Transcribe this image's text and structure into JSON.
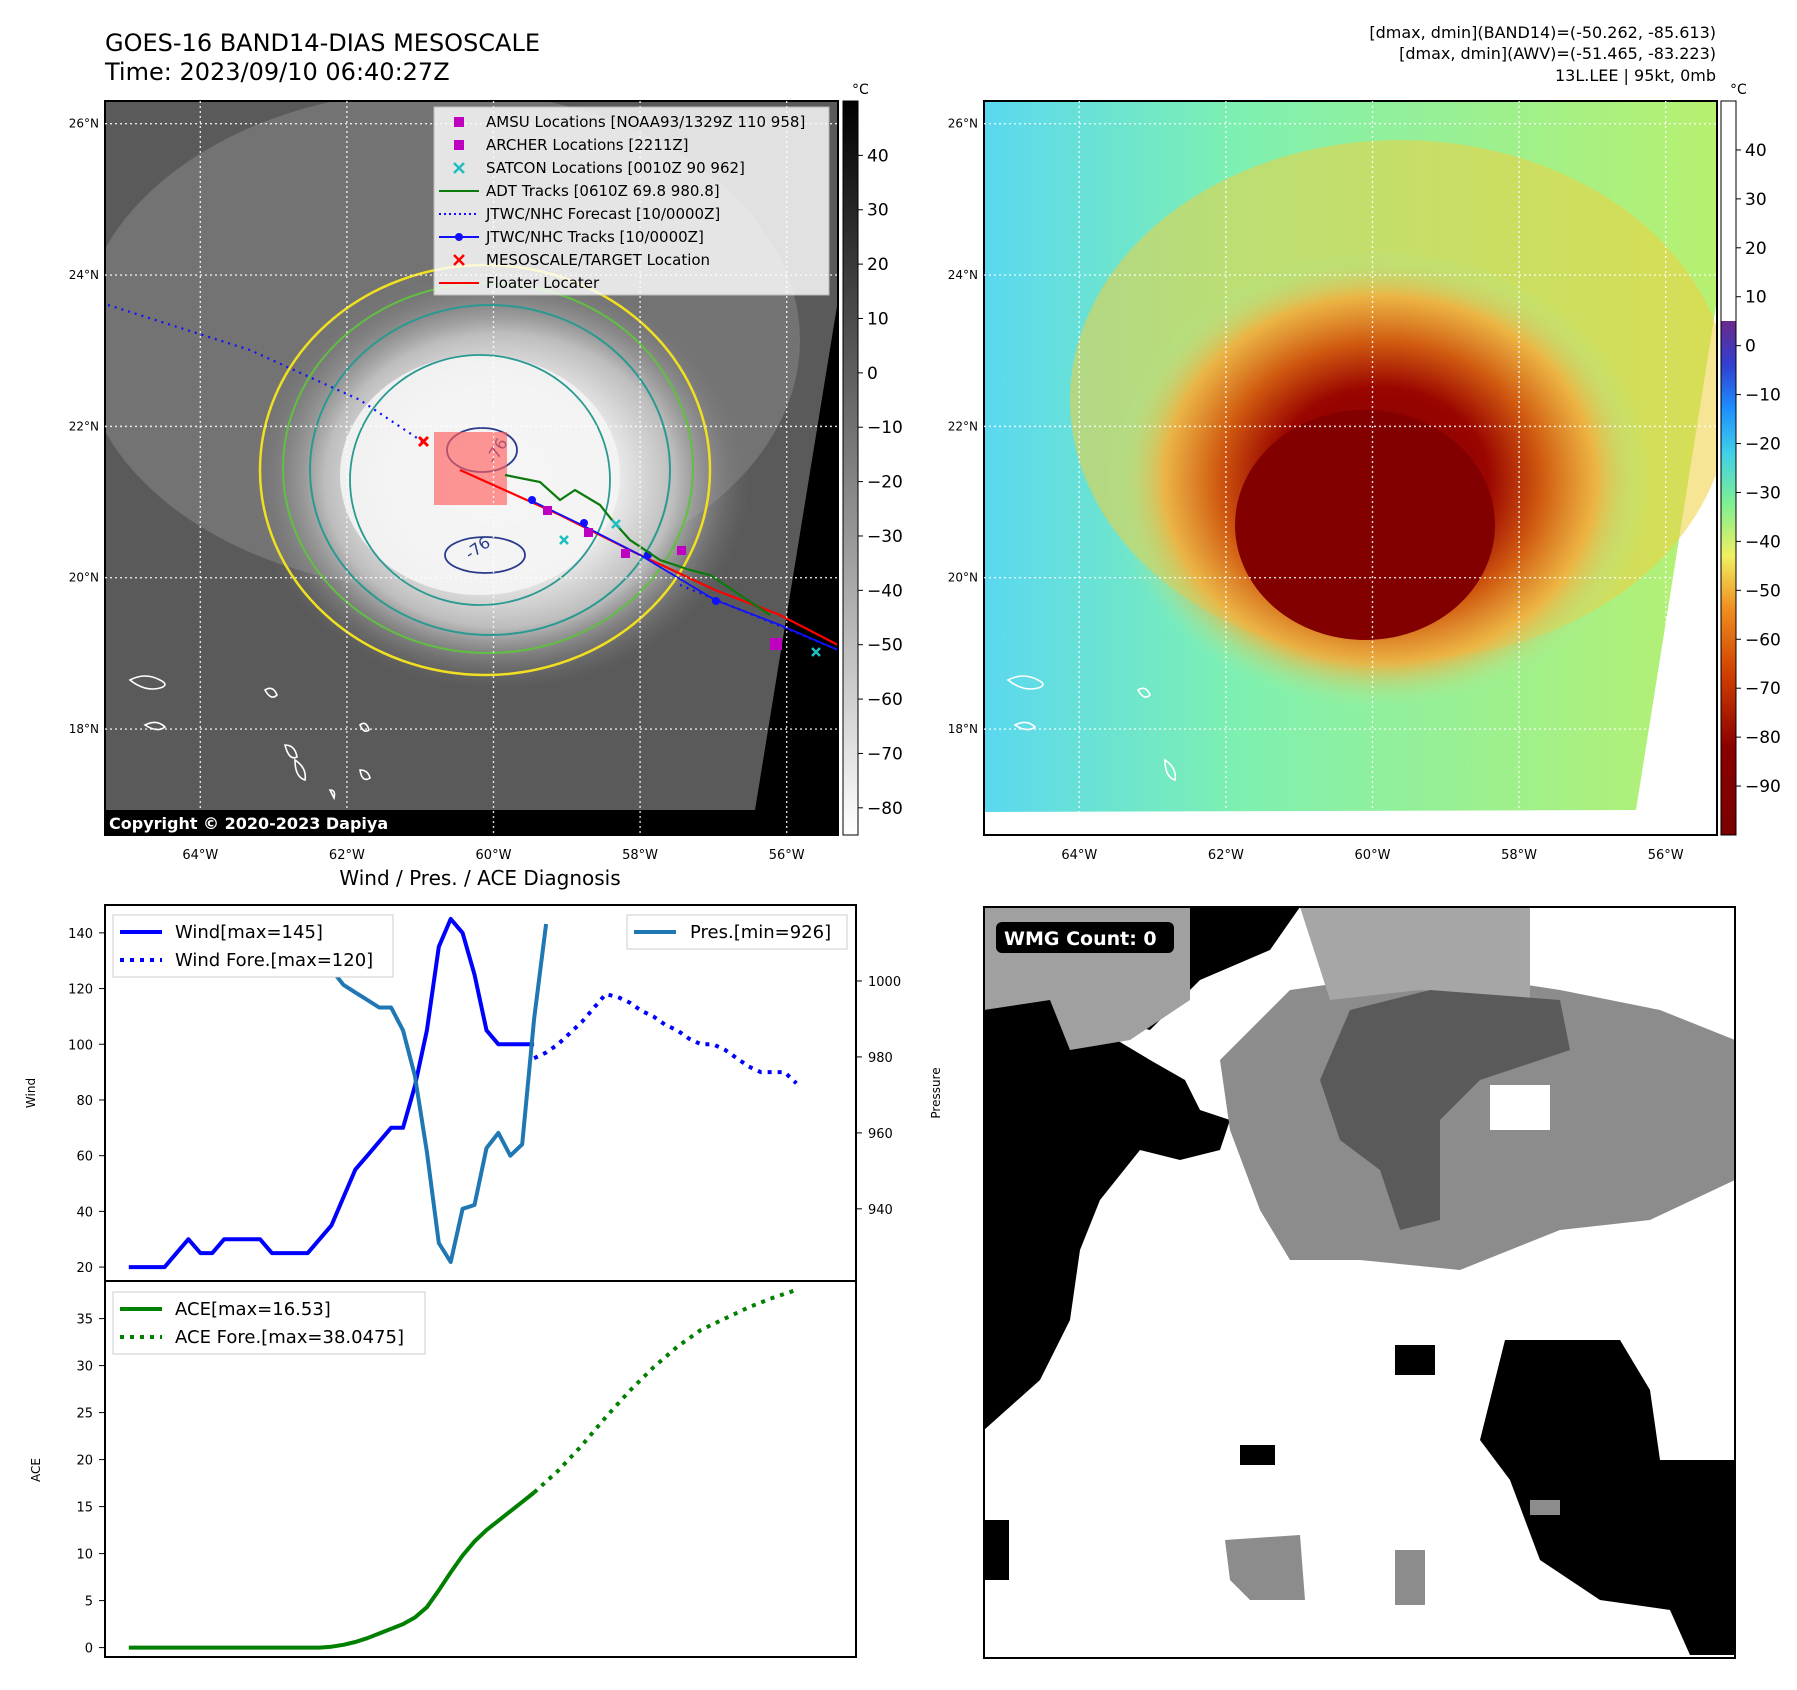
{
  "header": {
    "title_line1": "GOES-16 BAND14-DIAS MESOSCALE",
    "title_line2": "Time: 2023/09/10 06:40:27Z",
    "info_line1": "[dmax, dmin](BAND14)=(-50.262, -85.613)",
    "info_line2": "[dmax, dmin](AWV)=(-51.465, -83.223)",
    "info_line3": "13L.LEE | 95kt, 0mb"
  },
  "map_axes": {
    "lat_labels": [
      "26°N",
      "24°N",
      "22°N",
      "20°N",
      "18°N"
    ],
    "lon_labels": [
      "64°W",
      "62°W",
      "60°W",
      "58°W",
      "56°W"
    ],
    "lat_values": [
      26,
      24,
      22,
      20,
      18
    ],
    "lon_values": [
      -64,
      -62,
      -60,
      -58,
      -56
    ]
  },
  "left_colorbar": {
    "unit": "°C",
    "ticks": [
      "40",
      "30",
      "20",
      "10",
      "0",
      "−10",
      "−20",
      "−30",
      "−40",
      "−50",
      "−60",
      "−70",
      "−80"
    ],
    "tick_values": [
      40,
      30,
      20,
      10,
      0,
      -10,
      -20,
      -30,
      -40,
      -50,
      -60,
      -70,
      -80
    ],
    "range": [
      -85,
      50
    ]
  },
  "right_colorbar": {
    "unit": "°C",
    "ticks": [
      "40",
      "30",
      "20",
      "10",
      "0",
      "−10",
      "−20",
      "−30",
      "−40",
      "−50",
      "−60",
      "−70",
      "−80",
      "−90"
    ],
    "tick_values": [
      40,
      30,
      20,
      10,
      0,
      -10,
      -20,
      -30,
      -40,
      -50,
      -60,
      -70,
      -80,
      -90
    ],
    "range": [
      -100,
      50
    ]
  },
  "legend": {
    "items": [
      {
        "label": "AMSU Locations [NOAA93/1329Z 110 958]",
        "marker": "square",
        "color": "#c000c0"
      },
      {
        "label": "ARCHER Locations [2211Z]",
        "marker": "square",
        "color": "#c000c0"
      },
      {
        "label": "SATCON Locations [0010Z 90 962]",
        "marker": "x",
        "color": "#1fbfbf"
      },
      {
        "label": "ADT Tracks [0610Z 69.8 980.8]",
        "marker": "line",
        "color": "#0a7a0a"
      },
      {
        "label": "JTWC/NHC Forecast [10/0000Z]",
        "marker": "dotted",
        "color": "#1010ff"
      },
      {
        "label": "JTWC/NHC Tracks [10/0000Z]",
        "marker": "dotline",
        "color": "#1010ff"
      },
      {
        "label": "MESOSCALE/TARGET Location",
        "marker": "x",
        "color": "#ff0000"
      },
      {
        "label": "Floater Locater",
        "marker": "line",
        "color": "#ff0000"
      }
    ]
  },
  "contour_labels": [
    "-76",
    "-76"
  ],
  "copyright": "Copyright © 2020-2023 Dapiya",
  "wmg": {
    "label": "WMG Count: 0"
  },
  "chart_data": [
    {
      "type": "line",
      "title": "Wind / Pres. / ACE Diagnosis",
      "ylabel": "Wind",
      "ylabel_right": "Pressure",
      "ylim": [
        15,
        150
      ],
      "ylim_right": [
        921,
        1020
      ],
      "yticks": [
        20,
        40,
        60,
        80,
        100,
        120,
        140
      ],
      "yticks_right": [
        940,
        960,
        980,
        1000
      ],
      "xlim": [
        -1,
        62
      ],
      "series": [
        {
          "name": "Wind[max=145]",
          "color": "#0000ff",
          "style": "solid",
          "axis": "left",
          "x": [
            1,
            2,
            3,
            4,
            5,
            6,
            7,
            8,
            9,
            10,
            11,
            12,
            13,
            14,
            15,
            16,
            17,
            18,
            19,
            20,
            21,
            22,
            23,
            24,
            25,
            26,
            27,
            28,
            29,
            30,
            31,
            32,
            33,
            34,
            35
          ],
          "y": [
            20,
            20,
            20,
            20,
            25,
            30,
            25,
            25,
            30,
            30,
            30,
            30,
            25,
            25,
            25,
            25,
            30,
            35,
            45,
            55,
            60,
            65,
            70,
            70,
            85,
            105,
            135,
            145,
            140,
            125,
            105,
            100,
            100,
            100,
            100
          ]
        },
        {
          "name": "Wind Fore.[max=120]",
          "color": "#0000ff",
          "style": "dotted",
          "axis": "left",
          "x": [
            35,
            36,
            37,
            38,
            39,
            40,
            41,
            42,
            43,
            44,
            45,
            46,
            47,
            48,
            49,
            50,
            51,
            52,
            53,
            54,
            55,
            56,
            57
          ],
          "y": [
            95,
            97,
            100,
            104,
            108,
            113,
            118,
            117,
            115,
            112,
            110,
            107,
            105,
            102,
            100,
            100,
            98,
            95,
            92,
            90,
            90,
            90,
            86
          ]
        },
        {
          "name": "Pres.[min=926]",
          "color": "#1f77b4",
          "style": "solid",
          "axis": "right",
          "x": [
            1,
            2,
            3,
            4,
            5,
            6,
            7,
            8,
            9,
            10,
            11,
            12,
            13,
            14,
            15,
            16,
            17,
            18,
            19,
            20,
            21,
            22,
            23,
            24,
            25,
            26,
            27,
            28,
            29,
            30,
            31,
            32,
            33,
            34,
            35,
            36
          ],
          "y": [
            1011,
            1011,
            1011,
            1011,
            1010,
            1010,
            1010,
            1010,
            1010,
            1010,
            1010,
            1010,
            1010,
            1011,
            1010,
            1009,
            1007,
            1003,
            999,
            997,
            995,
            993,
            993,
            987,
            975,
            955,
            931,
            926,
            940,
            941,
            956,
            960,
            954,
            957,
            990,
            1015
          ]
        }
      ]
    },
    {
      "type": "line",
      "ylabel": "ACE",
      "ylim": [
        -1,
        39
      ],
      "yticks": [
        0,
        5,
        10,
        15,
        20,
        25,
        30,
        35
      ],
      "xlim": [
        -1,
        62
      ],
      "series": [
        {
          "name": "ACE[max=16.53]",
          "color": "#008000",
          "style": "solid",
          "x": [
            1,
            5,
            10,
            15,
            17,
            18,
            19,
            20,
            21,
            22,
            23,
            24,
            25,
            26,
            27,
            28,
            29,
            30,
            31,
            32,
            33,
            34,
            35
          ],
          "y": [
            0,
            0,
            0,
            0,
            0,
            0.1,
            0.3,
            0.6,
            1.0,
            1.5,
            2.0,
            2.5,
            3.2,
            4.3,
            6.1,
            8.0,
            9.8,
            11.3,
            12.5,
            13.5,
            14.5,
            15.5,
            16.5
          ]
        },
        {
          "name": "ACE Fore.[max=38.0475]",
          "color": "#008000",
          "style": "dotted",
          "x": [
            35,
            37,
            39,
            41,
            43,
            45,
            47,
            49,
            51,
            53,
            55,
            57
          ],
          "y": [
            16.5,
            18.8,
            21.5,
            24.5,
            27.3,
            29.8,
            32.0,
            33.8,
            35.0,
            36.2,
            37.2,
            38.05
          ]
        }
      ]
    }
  ]
}
